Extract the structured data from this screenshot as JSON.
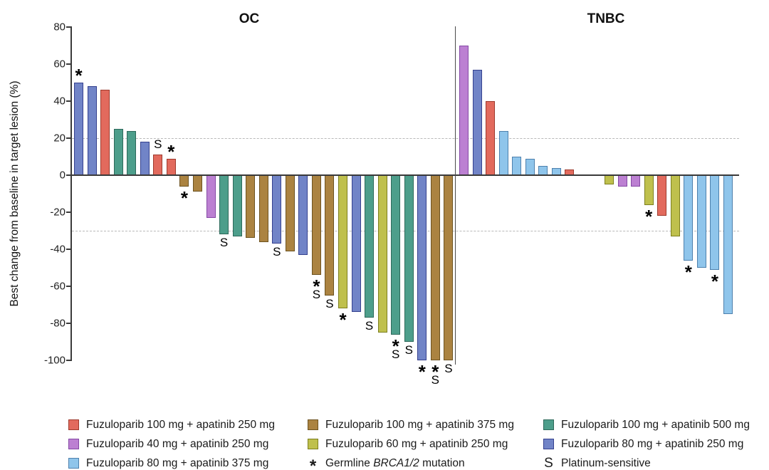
{
  "chart_data": {
    "type": "bar",
    "subtype": "waterfall",
    "title_left": "OC",
    "title_right": "TNBC",
    "ylabel": "Best change from baseline in target lesion (%)",
    "ylim": [
      -100,
      80
    ],
    "yticks": [
      80,
      60,
      40,
      20,
      0,
      -20,
      -40,
      -60,
      -80,
      -100
    ],
    "reference_lines_y": [
      20,
      -30
    ],
    "grid": false,
    "legend_position": "bottom",
    "annotations_key": {
      "asterisk": "Germline BRCA1/2 mutation",
      "S": "Platinum-sensitive"
    },
    "treatments": {
      "f100a250": {
        "label": "Fuzuloparib 100 mg + apatinib 250 mg",
        "fill": "#e26a5d",
        "border": "#9e3a2d"
      },
      "f100a375": {
        "label": "Fuzuloparib 100 mg + apatinib 375 mg",
        "fill": "#ab8341",
        "border": "#6d5320"
      },
      "f100a500": {
        "label": "Fuzuloparib 100 mg + apatinib 500 mg",
        "fill": "#4d9e8b",
        "border": "#2d695a"
      },
      "f40a250": {
        "label": "Fuzuloparib 40 mg + apatinib 250 mg",
        "fill": "#bc80d2",
        "border": "#8549a5"
      },
      "f60a250": {
        "label": "Fuzuloparib 60 mg + apatinib 250 mg",
        "fill": "#bfc04d",
        "border": "#7d7f1e"
      },
      "f80a250": {
        "label": "Fuzuloparib 80 mg + apatinib 250 mg",
        "fill": "#7184c7",
        "border": "#35418f"
      },
      "f80a375": {
        "label": "Fuzuloparib 80 mg + apatinib 375 mg",
        "fill": "#8fc5eb",
        "border": "#4d80ad"
      }
    },
    "series": [
      {
        "group": "OC",
        "bars": [
          {
            "value": 50,
            "treatment": "f80a250",
            "marks": [
              "*"
            ]
          },
          {
            "value": 48,
            "treatment": "f80a250"
          },
          {
            "value": 46,
            "treatment": "f100a250"
          },
          {
            "value": 25,
            "treatment": "f100a500"
          },
          {
            "value": 24,
            "treatment": "f100a500"
          },
          {
            "value": 18,
            "treatment": "f80a250"
          },
          {
            "value": 11,
            "treatment": "f100a250",
            "marks": [
              "S"
            ]
          },
          {
            "value": 9,
            "treatment": "f100a250",
            "marks": [
              "*"
            ]
          },
          {
            "value": -6,
            "treatment": "f100a375",
            "marks": [
              "*"
            ]
          },
          {
            "value": -9,
            "treatment": "f100a375"
          },
          {
            "value": -23,
            "treatment": "f40a250"
          },
          {
            "value": -32,
            "treatment": "f100a500",
            "marks": [
              "S"
            ]
          },
          {
            "value": -33,
            "treatment": "f100a500"
          },
          {
            "value": -34,
            "treatment": "f100a375"
          },
          {
            "value": -36,
            "treatment": "f100a375"
          },
          {
            "value": -37,
            "treatment": "f80a250",
            "marks": [
              "S"
            ]
          },
          {
            "value": -41,
            "treatment": "f100a375"
          },
          {
            "value": -43,
            "treatment": "f80a250"
          },
          {
            "value": -54,
            "treatment": "f100a375",
            "marks": [
              "*",
              "S"
            ]
          },
          {
            "value": -65,
            "treatment": "f100a375",
            "marks": [
              "S"
            ]
          },
          {
            "value": -72,
            "treatment": "f60a250",
            "marks": [
              "*"
            ]
          },
          {
            "value": -74,
            "treatment": "f80a250"
          },
          {
            "value": -77,
            "treatment": "f100a500",
            "marks": [
              "S"
            ]
          },
          {
            "value": -85,
            "treatment": "f60a250"
          },
          {
            "value": -86,
            "treatment": "f100a500",
            "marks": [
              "*",
              "S"
            ]
          },
          {
            "value": -90,
            "treatment": "f100a500",
            "marks": [
              "S"
            ]
          },
          {
            "value": -100,
            "treatment": "f80a250",
            "marks": [
              "*"
            ]
          },
          {
            "value": -100,
            "treatment": "f100a375",
            "marks": [
              "*",
              "S"
            ]
          },
          {
            "value": -100,
            "treatment": "f100a375",
            "marks": [
              "S"
            ]
          }
        ]
      },
      {
        "group": "TNBC",
        "bars": [
          {
            "value": 70,
            "treatment": "f40a250"
          },
          {
            "value": 57,
            "treatment": "f80a250"
          },
          {
            "value": 40,
            "treatment": "f100a250"
          },
          {
            "value": 24,
            "treatment": "f80a375"
          },
          {
            "value": 10,
            "treatment": "f80a375"
          },
          {
            "value": 9,
            "treatment": "f80a375"
          },
          {
            "value": 5,
            "treatment": "f80a375"
          },
          {
            "value": 4,
            "treatment": "f80a375"
          },
          {
            "value": 3,
            "treatment": "f100a250"
          },
          {
            "value": 0
          },
          {
            "value": 0
          },
          {
            "value": -5,
            "treatment": "f60a250"
          },
          {
            "value": -6,
            "treatment": "f40a250"
          },
          {
            "value": -6,
            "treatment": "f40a250"
          },
          {
            "value": -16,
            "treatment": "f60a250",
            "marks": [
              "*"
            ]
          },
          {
            "value": -22,
            "treatment": "f100a250"
          },
          {
            "value": -33,
            "treatment": "f60a250"
          },
          {
            "value": -46,
            "treatment": "f80a375",
            "marks": [
              "*"
            ]
          },
          {
            "value": -50,
            "treatment": "f80a375"
          },
          {
            "value": -51,
            "treatment": "f80a375",
            "marks": [
              "*"
            ]
          },
          {
            "value": -75,
            "treatment": "f80a375"
          }
        ]
      }
    ]
  },
  "legend": {
    "items": [
      {
        "marker": "swatch",
        "treatment": "f100a250",
        "label": "Fuzuloparib 100 mg + apatinib 250 mg"
      },
      {
        "marker": "swatch",
        "treatment": "f100a375",
        "label": "Fuzuloparib 100 mg + apatinib 375 mg"
      },
      {
        "marker": "swatch",
        "treatment": "f100a500",
        "label": "Fuzuloparib 100 mg + apatinib 500 mg"
      },
      {
        "marker": "swatch",
        "treatment": "f40a250",
        "label": "Fuzuloparib 40 mg + apatinib 250 mg"
      },
      {
        "marker": "swatch",
        "treatment": "f60a250",
        "label": "Fuzuloparib 60 mg + apatinib 250 mg"
      },
      {
        "marker": "swatch",
        "treatment": "f80a250",
        "label": "Fuzuloparib 80 mg + apatinib 250 mg"
      },
      {
        "marker": "swatch",
        "treatment": "f80a375",
        "label": "Fuzuloparib 80 mg + apatinib 375 mg"
      },
      {
        "marker": "asterisk",
        "label_prefix": "Germline ",
        "label_italic": "BRCA1/2",
        "label_suffix": " mutation"
      },
      {
        "marker": "S",
        "label": "Platinum-sensitive"
      }
    ]
  }
}
